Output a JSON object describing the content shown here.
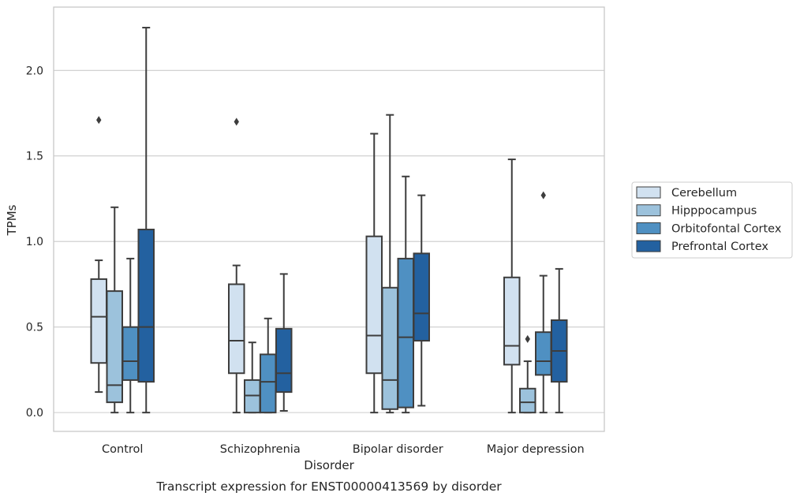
{
  "chart_data": {
    "type": "boxplot",
    "caption": "Transcript expression for ENST00000413569 by disorder",
    "xlabel": "Disorder",
    "ylabel": "TPMs",
    "ylim": [
      -0.11,
      2.37
    ],
    "yticks": [
      "0.0",
      "0.5",
      "1.0",
      "1.5",
      "2.0"
    ],
    "grid": true,
    "legend_position": "right",
    "categories": [
      "Control",
      "Schizophrenia",
      "Bipolar disorder",
      "Major depression"
    ],
    "series": [
      {
        "name": "Cerebellum",
        "color": "#d1e1f0",
        "boxes": [
          {
            "whisker_low": 0.12,
            "q1": 0.29,
            "median": 0.56,
            "q3": 0.78,
            "whisker_high": 0.89,
            "outliers": [
              1.71
            ]
          },
          {
            "whisker_low": 0.0,
            "q1": 0.23,
            "median": 0.42,
            "q3": 0.75,
            "whisker_high": 0.86,
            "outliers": [
              1.7
            ]
          },
          {
            "whisker_low": 0.0,
            "q1": 0.23,
            "median": 0.45,
            "q3": 1.03,
            "whisker_high": 1.63,
            "outliers": []
          },
          {
            "whisker_low": 0.0,
            "q1": 0.28,
            "median": 0.39,
            "q3": 0.79,
            "whisker_high": 1.48,
            "outliers": []
          }
        ]
      },
      {
        "name": "Hipppocampus",
        "color": "#9cc2dc",
        "boxes": [
          {
            "whisker_low": 0.0,
            "q1": 0.06,
            "median": 0.16,
            "q3": 0.71,
            "whisker_high": 1.2,
            "outliers": []
          },
          {
            "whisker_low": 0.0,
            "q1": 0.0,
            "median": 0.1,
            "q3": 0.19,
            "whisker_high": 0.41,
            "outliers": []
          },
          {
            "whisker_low": 0.0,
            "q1": 0.02,
            "median": 0.19,
            "q3": 0.73,
            "whisker_high": 1.74,
            "outliers": []
          },
          {
            "whisker_low": 0.0,
            "q1": 0.0,
            "median": 0.06,
            "q3": 0.14,
            "whisker_high": 0.3,
            "outliers": [
              0.43
            ]
          }
        ]
      },
      {
        "name": "Orbitofontal Cortex",
        "color": "#4f90c2",
        "boxes": [
          {
            "whisker_low": 0.0,
            "q1": 0.19,
            "median": 0.3,
            "q3": 0.5,
            "whisker_high": 0.9,
            "outliers": []
          },
          {
            "whisker_low": 0.0,
            "q1": 0.0,
            "median": 0.18,
            "q3": 0.34,
            "whisker_high": 0.55,
            "outliers": []
          },
          {
            "whisker_low": 0.0,
            "q1": 0.03,
            "median": 0.44,
            "q3": 0.9,
            "whisker_high": 1.38,
            "outliers": []
          },
          {
            "whisker_low": 0.0,
            "q1": 0.22,
            "median": 0.3,
            "q3": 0.47,
            "whisker_high": 0.8,
            "outliers": [
              1.27
            ]
          }
        ]
      },
      {
        "name": "Prefrontal Cortex",
        "color": "#2361a0",
        "boxes": [
          {
            "whisker_low": 0.0,
            "q1": 0.18,
            "median": 0.5,
            "q3": 1.07,
            "whisker_high": 2.25,
            "outliers": []
          },
          {
            "whisker_low": 0.01,
            "q1": 0.12,
            "median": 0.23,
            "q3": 0.49,
            "whisker_high": 0.81,
            "outliers": []
          },
          {
            "whisker_low": 0.04,
            "q1": 0.42,
            "median": 0.58,
            "q3": 0.93,
            "whisker_high": 1.27,
            "outliers": []
          },
          {
            "whisker_low": 0.0,
            "q1": 0.18,
            "median": 0.36,
            "q3": 0.54,
            "whisker_high": 0.84,
            "outliers": []
          }
        ]
      }
    ]
  },
  "style": {
    "grid_color": "#cccccc",
    "line_color": "#3d3d3d",
    "frame_color": "#c8c8c8"
  }
}
